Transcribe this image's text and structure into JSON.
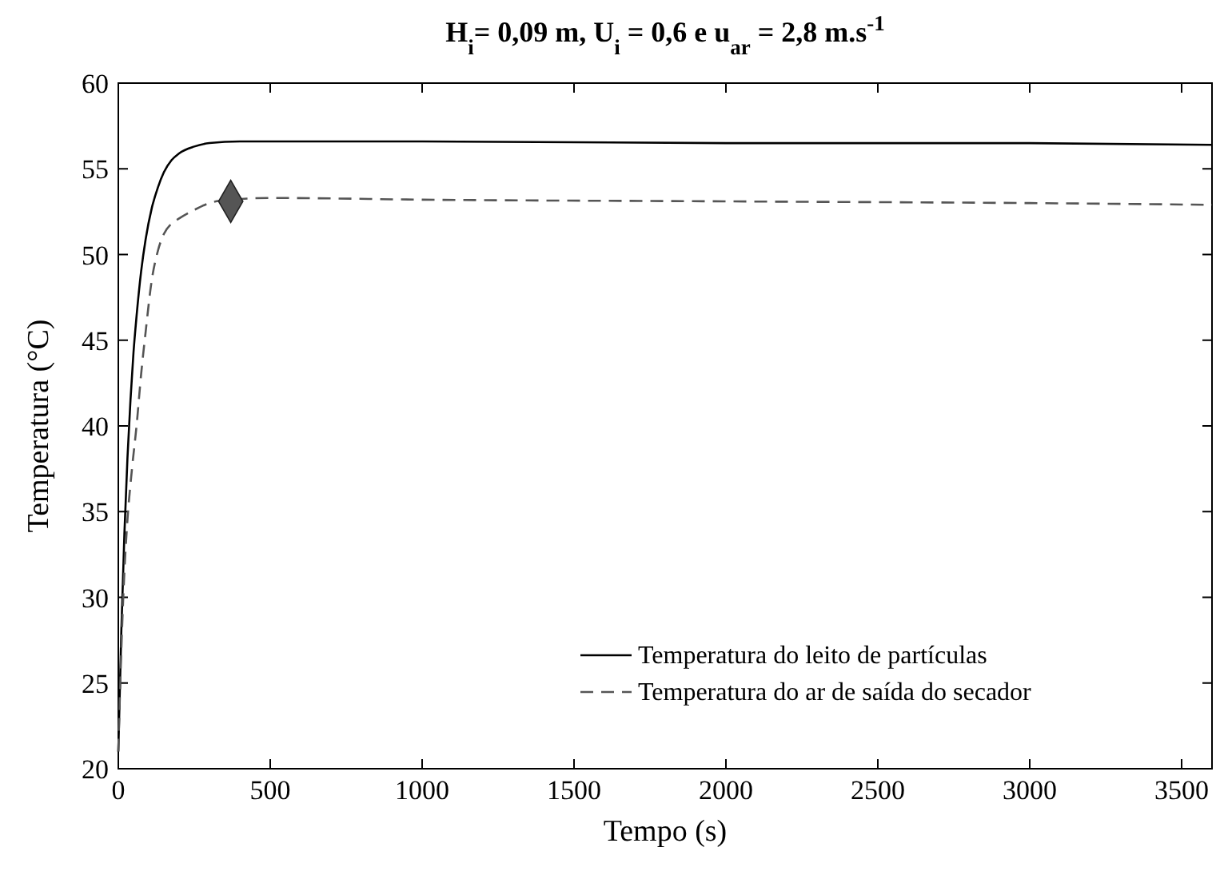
{
  "chart_data": {
    "type": "line",
    "title": "H$_{i}$= 0,09 m, U$_{i}$ = 0,6 e u$_{ar}$ = 2,8 m.s$^{-1}$",
    "xlabel": "Tempo (s)",
    "ylabel": "Temperatura (°C)",
    "xlim": [
      0,
      3600
    ],
    "xticks": [
      0,
      500,
      1000,
      1500,
      2000,
      2500,
      3000,
      3500
    ],
    "ylim": [
      20,
      60
    ],
    "yticks": [
      20,
      25,
      30,
      35,
      40,
      45,
      50,
      55,
      60
    ],
    "grid": false,
    "legend": "bottom right",
    "series": [
      {
        "name": "Temperatura do leito de partículas",
        "color": "#000000",
        "line_style": "solid",
        "x": [
          0,
          10,
          20,
          30,
          40,
          50,
          60,
          75,
          90,
          110,
          130,
          150,
          175,
          200,
          250,
          300,
          400,
          500,
          1000,
          2000,
          3000,
          3600
        ],
        "values": [
          21,
          28.1,
          33.7,
          38.1,
          41.5,
          44.3,
          46.4,
          49,
          50.9,
          52.7,
          53.9,
          54.8,
          55.5,
          55.9,
          56.3,
          56.5,
          56.6,
          56.6,
          56.6,
          56.5,
          56.5,
          56.4
        ]
      },
      {
        "name": "Temperatura do ar de saída do secador",
        "color": "#555555",
        "line_style": "dashed",
        "x": [
          0,
          10,
          20,
          30,
          45,
          60,
          75,
          90,
          110,
          130,
          150,
          175,
          200,
          250,
          300,
          370,
          500,
          1000,
          2000,
          3000,
          3600
        ],
        "values": [
          21,
          27,
          31.5,
          34.5,
          37.5,
          40,
          43,
          45.5,
          48.5,
          50.2,
          51.2,
          51.8,
          52.1,
          52.6,
          53,
          53.2,
          53.3,
          53.2,
          53.1,
          53,
          52.9
        ]
      },
      {
        "type": "scatter",
        "color": "#555555",
        "marker": "diamond",
        "x": [
          370
        ],
        "values": [
          53.1
        ]
      }
    ]
  }
}
